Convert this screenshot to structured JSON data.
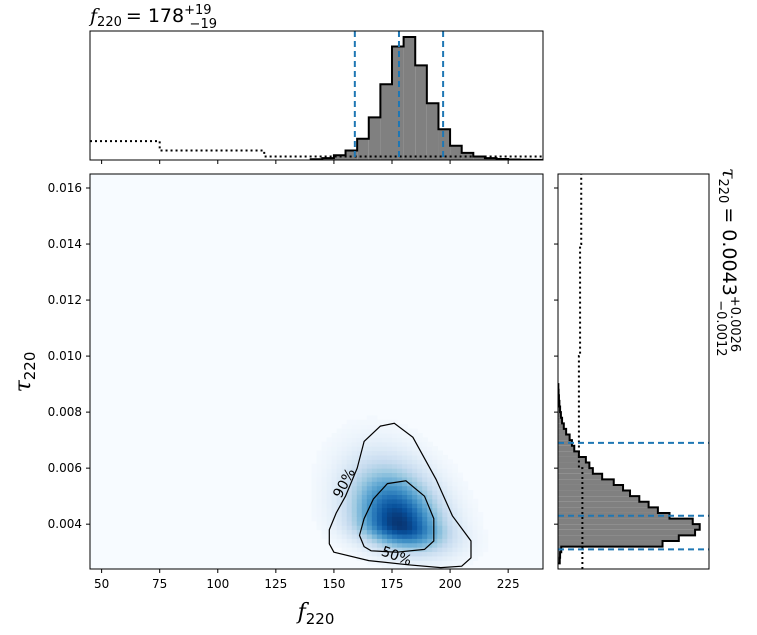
{
  "chart_data": [
    {
      "type": "heatmap",
      "panel": "joint",
      "xlabel_main": "f",
      "xlabel_sub": "220",
      "ylabel_main": "τ",
      "ylabel_sub": "220",
      "xlim": [
        45,
        240
      ],
      "ylim": [
        0.0024,
        0.0165
      ],
      "xticks": [
        "50",
        "75",
        "100",
        "125",
        "150",
        "175",
        "200",
        "225"
      ],
      "yticks": [
        "0.004",
        "0.006",
        "0.008",
        "0.010",
        "0.012",
        "0.014",
        "0.016"
      ],
      "peak": {
        "f": 178,
        "tau": 0.004
      },
      "contours": [
        {
          "label": "50%",
          "points": [
            [
              166,
              0.00305
            ],
            [
              177,
              0.003
            ],
            [
              189,
              0.0031
            ],
            [
              193,
              0.0034
            ],
            [
              193,
              0.0042
            ],
            [
              189,
              0.005
            ],
            [
              181,
              0.00555
            ],
            [
              173,
              0.00545
            ],
            [
              167,
              0.0049
            ],
            [
              163,
              0.0042
            ],
            [
              161,
              0.0036
            ],
            [
              163,
              0.0032
            ]
          ]
        },
        {
          "label": "90%",
          "points": [
            [
              150,
              0.003
            ],
            [
              165,
              0.0027
            ],
            [
              182,
              0.00255
            ],
            [
              196,
              0.00245
            ],
            [
              205,
              0.0025
            ],
            [
              209,
              0.0028
            ],
            [
              209,
              0.0034
            ],
            [
              201,
              0.0043
            ],
            [
              194,
              0.0056
            ],
            [
              184,
              0.0071
            ],
            [
              176,
              0.0076
            ],
            [
              170,
              0.0075
            ],
            [
              163,
              0.00695
            ],
            [
              160,
              0.006
            ],
            [
              155,
              0.005
            ],
            [
              151,
              0.0044
            ],
            [
              148,
              0.0038
            ],
            [
              148,
              0.0033
            ]
          ]
        }
      ],
      "colormap": "Blues"
    },
    {
      "type": "bar",
      "panel": "marginal-f220",
      "title_main": "f",
      "title_sub": "220",
      "title_value": "= 178",
      "title_plus": "+19",
      "title_minus": "−19",
      "xlim": [
        45,
        240
      ],
      "bin_edges": [
        140,
        145,
        150,
        155,
        160,
        165,
        170,
        175,
        180,
        185,
        190,
        195,
        200,
        205,
        210,
        215,
        220,
        225,
        230,
        235,
        240
      ],
      "values": [
        0.3,
        0.8,
        2,
        4,
        9,
        18,
        32,
        48,
        52,
        40,
        24,
        13,
        6,
        3,
        1.5,
        0.8,
        0.4,
        0.2,
        0.1,
        0.05
      ],
      "quantiles": [
        159,
        178,
        197
      ],
      "prior_step": [
        [
          45,
          8
        ],
        [
          75,
          8
        ],
        [
          75,
          4
        ],
        [
          120,
          4
        ],
        [
          120,
          1.5
        ],
        [
          240,
          1.5
        ]
      ]
    },
    {
      "type": "bar",
      "panel": "marginal-tau220",
      "title_main": "τ",
      "title_sub": "220",
      "title_value": "= 0.0043",
      "title_plus": "+0.0026",
      "title_minus": "−0.0012",
      "ylim": [
        0.0024,
        0.0165
      ],
      "bin_edges": [
        0.0026,
        0.0028,
        0.003,
        0.0032,
        0.0034,
        0.0036,
        0.0038,
        0.004,
        0.0042,
        0.0044,
        0.0046,
        0.0048,
        0.005,
        0.0052,
        0.0054,
        0.0056,
        0.0058,
        0.006,
        0.0062,
        0.0064,
        0.0066,
        0.0068,
        0.007,
        0.0072,
        0.0074,
        0.0076,
        0.0078,
        0.008,
        0.0082,
        0.0084,
        0.0086,
        0.0088,
        0.009
      ],
      "values": [
        1.5,
        1.8,
        2.8,
        90,
        104,
        118,
        122,
        116,
        96,
        86,
        78,
        70,
        62,
        56,
        48,
        38,
        30,
        27,
        24,
        18,
        14,
        12,
        10,
        7,
        5,
        3.5,
        2.5,
        1.8,
        1.2,
        0.8,
        0.5,
        0.3
      ],
      "quantiles": [
        0.0031,
        0.0043,
        0.0069
      ],
      "prior_line": [
        [
          0.0024,
          21
        ],
        [
          0.006,
          21
        ],
        [
          0.006,
          18
        ],
        [
          0.01,
          18
        ],
        [
          0.01,
          19
        ],
        [
          0.014,
          19
        ],
        [
          0.014,
          20
        ],
        [
          0.0165,
          20
        ]
      ]
    }
  ]
}
